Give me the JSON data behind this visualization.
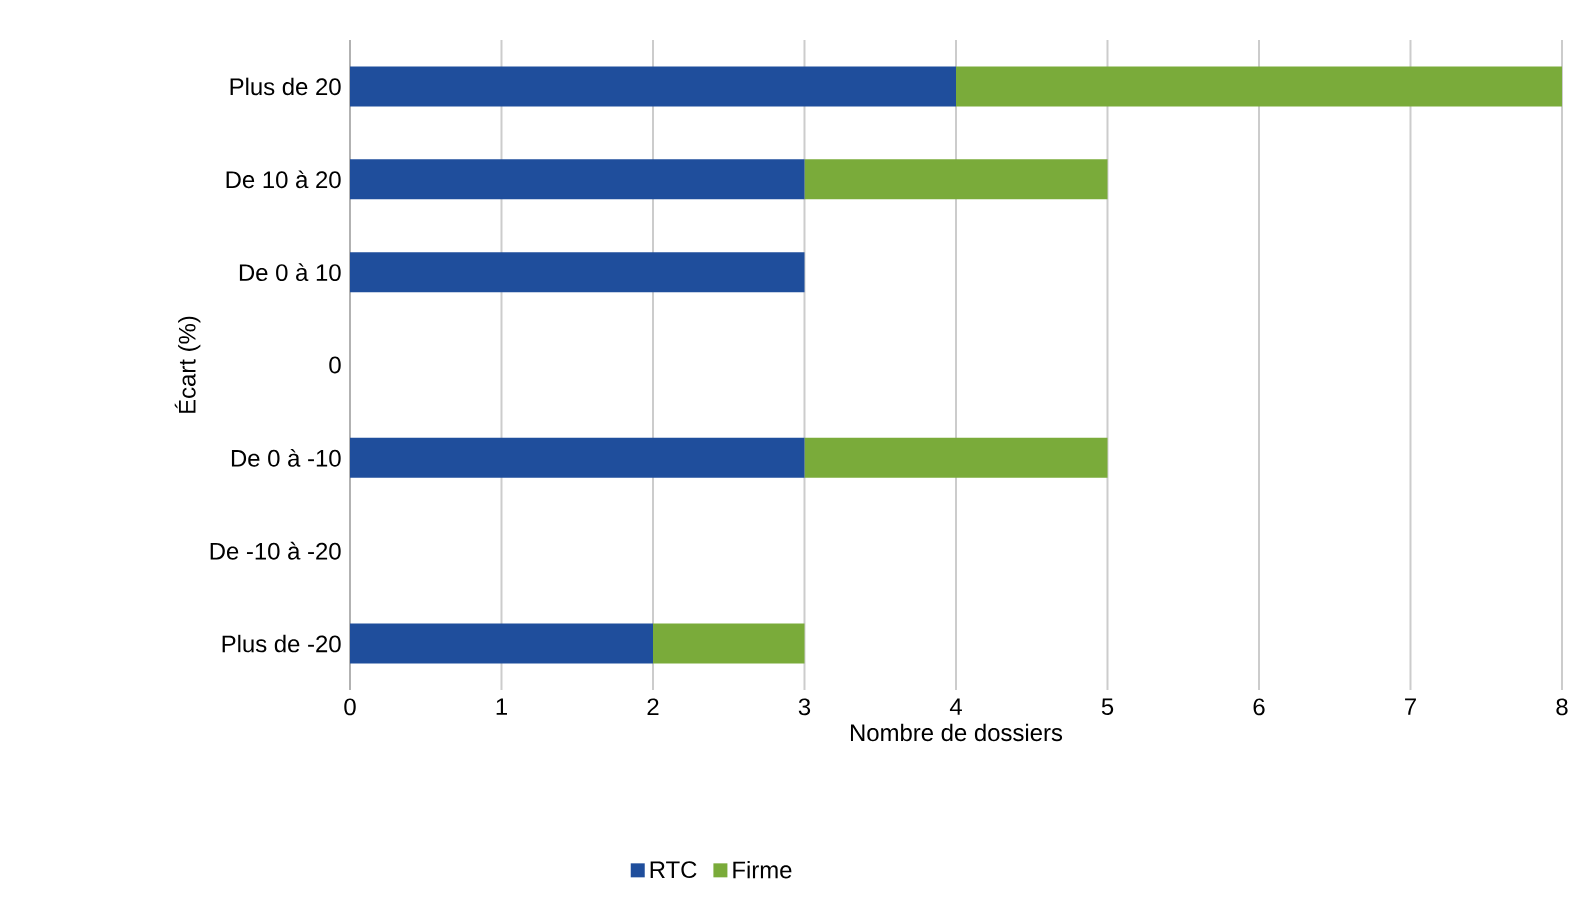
{
  "chart_data": {
    "type": "bar",
    "orientation": "horizontal",
    "stacked": true,
    "categories": [
      "Plus de 20",
      "De 10 à 20",
      "De 0 à 10",
      "0",
      "De 0 à -10",
      "De -10 à -20",
      "Plus de -20"
    ],
    "series": [
      {
        "name": "RTC",
        "color": "#1f4e9c",
        "values": [
          4,
          3,
          3,
          0,
          3,
          0,
          2
        ]
      },
      {
        "name": "Firme",
        "color": "#7aab3a",
        "values": [
          4,
          2,
          0,
          0,
          2,
          0,
          1
        ]
      }
    ],
    "xlim": [
      0,
      8
    ],
    "xticks": [
      0,
      1,
      2,
      3,
      4,
      5,
      6,
      7,
      8
    ],
    "xlabel": "Nombre de dossiers",
    "ylabel": "Écart (%)",
    "grid": "x",
    "legend": "bottom"
  }
}
